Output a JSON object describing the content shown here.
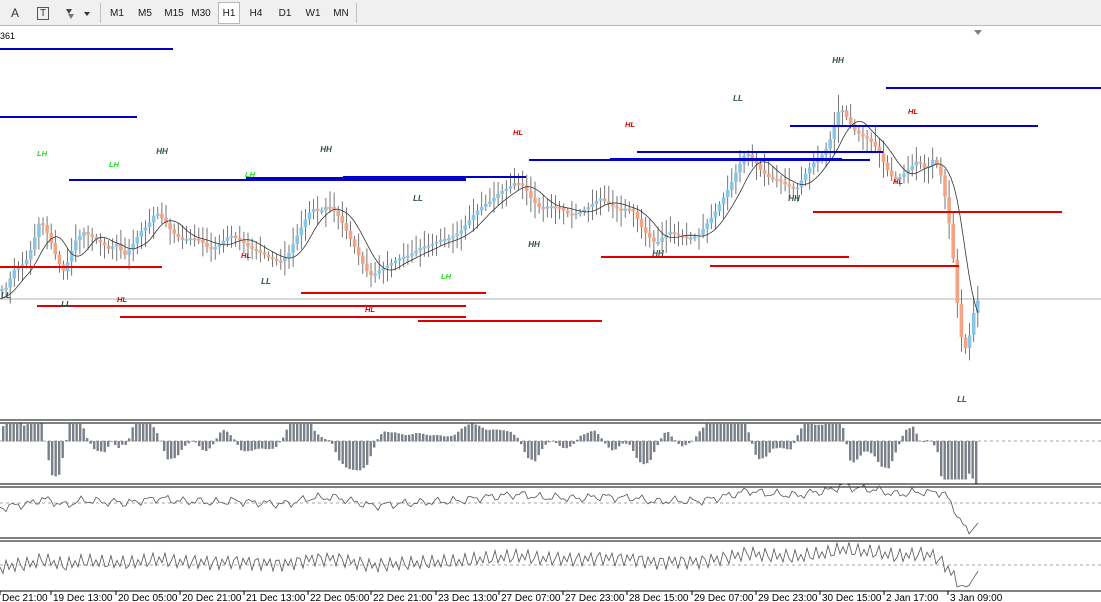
{
  "toolbar": {
    "text_tool_label": "A",
    "text_label_tool_label": "T",
    "timeframes": [
      "M1",
      "M5",
      "M15",
      "M30",
      "H1",
      "H4",
      "D1",
      "W1",
      "MN"
    ],
    "active_timeframe": "H1"
  },
  "chart": {
    "corner_label": "361",
    "time_axis": [
      "Dec 21:00",
      "19 Dec 13:00",
      "20 Dec 05:00",
      "20 Dec 21:00",
      "21 Dec 13:00",
      "22 Dec 05:00",
      "22 Dec 21:00",
      "23 Dec 13:00",
      "27 Dec 07:00",
      "27 Dec 23:00",
      "28 Dec 15:00",
      "29 Dec 07:00",
      "29 Dec 23:00",
      "30 Dec 15:00",
      "2 Jan 17:00",
      "3 Jan 09:00"
    ],
    "swing_labels": [
      "LL",
      "LL",
      "LH",
      "LH",
      "HL",
      "HH",
      "LH",
      "HL",
      "LL",
      "HH",
      "LL",
      "LH",
      "HL",
      "HL",
      "HH",
      "HL",
      "HH",
      "LL",
      "HH",
      "HH",
      "HL",
      "HL",
      "LH",
      "LL"
    ],
    "colors": {
      "bull": "#87c6e6",
      "bear": "#f5a382",
      "resistance": "#0000c8",
      "support": "#e00000",
      "ma": "#333333",
      "histogram": "#7a808a",
      "hh_label": "#2f4f4f",
      "lh_label": "#22dd22",
      "hl_label": "#dd0000",
      "ll_label": "#2f4f4f"
    }
  }
}
